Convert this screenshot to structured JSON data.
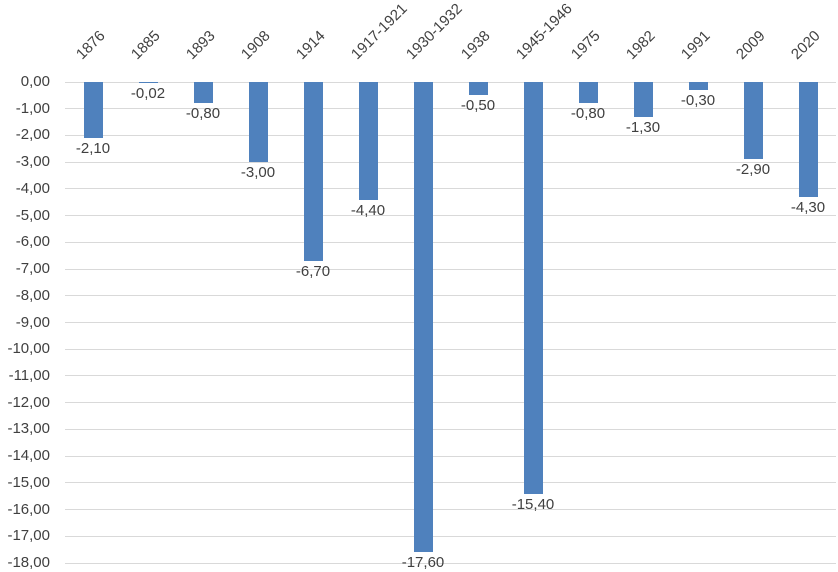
{
  "chart_data": {
    "type": "bar",
    "title": "",
    "xlabel": "",
    "ylabel": "",
    "categories": [
      "1876",
      "1885",
      "1893",
      "1908",
      "1914",
      "1917-1921",
      "1930-1932",
      "1938",
      "1945-1946",
      "1975",
      "1982",
      "1991",
      "2009",
      "2020"
    ],
    "values": [
      -2.1,
      -0.02,
      -0.8,
      -3.0,
      -6.7,
      -4.4,
      -17.6,
      -0.5,
      -15.4,
      -0.8,
      -1.3,
      -0.3,
      -2.9,
      -4.3
    ],
    "value_labels": [
      "-2,10",
      "-0,02",
      "-0,80",
      "-3,00",
      "-6,70",
      "-4,40",
      "-17,60",
      "-0,50",
      "-15,40",
      "-0,80",
      "-1,30",
      "-0,30",
      "-2,90",
      "-4,30"
    ],
    "y_axis": {
      "min": -18,
      "max": 0,
      "step": 1,
      "tick_labels": [
        "0,00",
        "-1,00",
        "-2,00",
        "-3,00",
        "-4,00",
        "-5,00",
        "-6,00",
        "-7,00",
        "-8,00",
        "-9,00",
        "-10,00",
        "-11,00",
        "-12,00",
        "-13,00",
        "-14,00",
        "-15,00",
        "-16,00",
        "-17,00",
        "-18,00"
      ]
    },
    "grid": true,
    "legend": false,
    "decimal_separator": ",",
    "colors": {
      "bar": "#4F81BD",
      "gridline": "#D9D9D9",
      "text": "#404040",
      "background": "#FFFFFF"
    }
  }
}
